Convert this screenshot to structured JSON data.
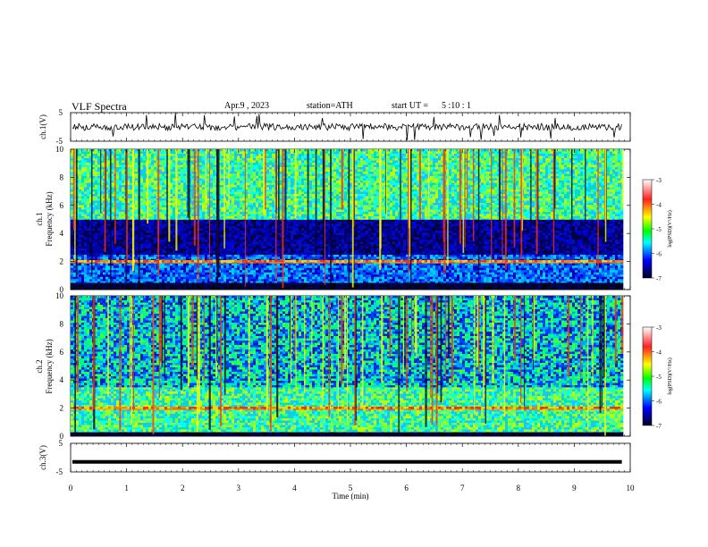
{
  "header": {
    "title": "VLF  Spectra",
    "date": "Apr.9  , 2023",
    "station": "station=ATH",
    "start_label": "start  UT  =",
    "start_time": "5  :10 : 1"
  },
  "colorbar": {
    "label": "log(PSD)(V²/Hz)",
    "ticks": [
      "-3",
      "-4",
      "-5",
      "-6",
      "-7"
    ],
    "colors": [
      "#ffffff",
      "#ff0000",
      "#ffff00",
      "#00ff00",
      "#00ffff",
      "#0000ff",
      "#000000"
    ]
  },
  "chart_data": [
    {
      "type": "line",
      "name": "ch1-waveform",
      "ylabel": "ch.1(V)",
      "ylim": [
        -5,
        5
      ],
      "yticks": [
        "5",
        "-5"
      ],
      "xlim": [
        0,
        10
      ],
      "baseline": 0,
      "amplitude_typical": 1.2
    },
    {
      "type": "heatmap",
      "name": "ch1-spectrogram",
      "ylabel": "ch.1\nFrequency  (kHz)",
      "xlim": [
        0,
        9.85
      ],
      "ylim": [
        0,
        10
      ],
      "yticks": [
        "0",
        "2",
        "4",
        "6",
        "8",
        "10"
      ],
      "colorscale_range": [
        -7,
        -3
      ],
      "bands_khz": [
        {
          "from": 0,
          "to": 0.5,
          "level": "black"
        },
        {
          "from": 0.5,
          "to": 2.5,
          "level": "low-blue"
        },
        {
          "from": 1.9,
          "to": 2.1,
          "level": "line"
        },
        {
          "from": 2.5,
          "to": 5.0,
          "level": "dark-blue"
        },
        {
          "from": 5.0,
          "to": 10,
          "level": "cyan-green"
        }
      ]
    },
    {
      "type": "heatmap",
      "name": "ch2-spectrogram",
      "ylabel": "ch.2\nFrequency  (kHz)",
      "xlim": [
        0,
        9.85
      ],
      "ylim": [
        0,
        10
      ],
      "yticks": [
        "0",
        "2",
        "4",
        "6",
        "8",
        "10"
      ],
      "colorscale_range": [
        -7,
        -3
      ],
      "bands_khz": [
        {
          "from": 0,
          "to": 0.3,
          "level": "black"
        },
        {
          "from": 0.3,
          "to": 3.5,
          "level": "cyan-green"
        },
        {
          "from": 1.9,
          "to": 2.1,
          "level": "line"
        },
        {
          "from": 3.5,
          "to": 10,
          "level": "blue-green"
        }
      ]
    },
    {
      "type": "line",
      "name": "ch3-waveform",
      "ylabel": "ch.3(V)",
      "ylim": [
        -5,
        5
      ],
      "yticks": [
        "5",
        "-5"
      ],
      "xlim": [
        0,
        9.85
      ],
      "constant_value": -1.5
    }
  ],
  "xaxis": {
    "label": "Time  (min)",
    "ticks": [
      "0",
      "1",
      "2",
      "3",
      "4",
      "5",
      "6",
      "7",
      "8",
      "9",
      "10"
    ],
    "range": [
      0,
      10
    ]
  }
}
